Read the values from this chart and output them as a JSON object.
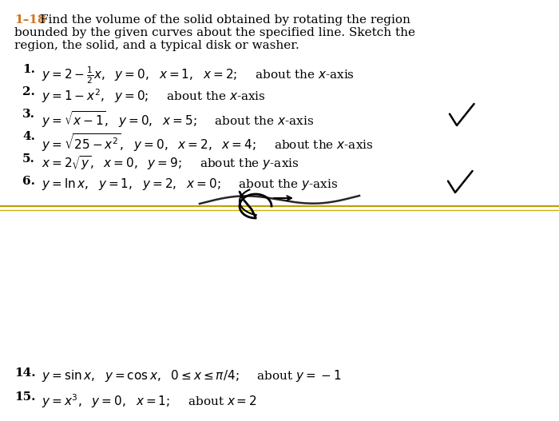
{
  "title_bold": "1–18",
  "title_text": "Find the volume of the solid obtained by rotating the region\nbounded by the given curves about the specified line. Sketch the\nregion, the solid, and a typical disk or washer.",
  "items": [
    {
      "num": "1.",
      "text": " $y = 2 - \\frac{1}{2}x,\\ y = 0,\\ x = 1,\\ x = 2;$\\quad about the $x$-axis"
    },
    {
      "num": "2.",
      "text": " $y = 1 - x^2,\\ y = 0;$\\quad about the $x$-axis"
    },
    {
      "num": "3.",
      "text": " $y = \\sqrt{x-1},\\ y = 0,\\ x = 5;$\\quad about the $x$-axis"
    },
    {
      "num": "4.",
      "text": " $y = \\sqrt{25 - x^2},\\ y = 0,\\ x = 2,\\ x = 4;$\\quad about the $x$-axis"
    },
    {
      "num": "5.",
      "text": " $x = 2\\sqrt{y},\\ x = 0,\\ y = 9;$\\quad about the $y$-axis"
    },
    {
      "num": "6.",
      "text": " $y = \\ln x,\\ y = 1,\\ y = 2,\\ x = 0;$\\quad about the $y$-axis"
    }
  ],
  "bottom_items": [
    {
      "num": "14.",
      "text": " $y = \\sin x,\\ y = \\cos x,\\ 0 \\leq x \\leq \\pi/4;$\\quad about $y = -1$"
    },
    {
      "num": "15.",
      "text": " $y = x^3,\\ y = 0,\\ x = 1;$\\quad about $x = 2$"
    }
  ],
  "bg_color": "#ffffff",
  "title_color": "#cc7722",
  "text_color": "#000000",
  "separator_color_top": "#b8a000",
  "separator_color_bottom": "#c8b400"
}
